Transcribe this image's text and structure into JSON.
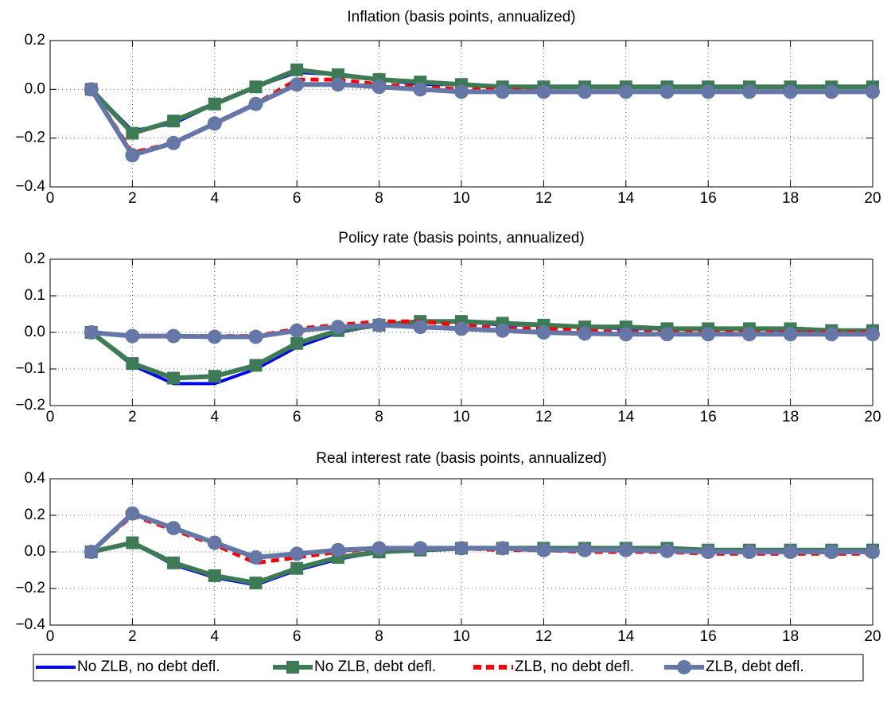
{
  "chart_data": [
    {
      "type": "line",
      "title": "Inflation (basis points, annualized)",
      "grid": true,
      "legend": "bottom",
      "x": [
        1,
        2,
        3,
        4,
        5,
        6,
        7,
        8,
        9,
        10,
        11,
        12,
        13,
        14,
        15,
        16,
        17,
        18,
        19,
        20
      ],
      "xlim": [
        0,
        20
      ],
      "xticks": [
        0,
        2,
        4,
        6,
        8,
        10,
        12,
        14,
        16,
        18,
        20
      ],
      "ylim": [
        -0.4,
        0.2
      ],
      "yticks": [
        {
          "value": -0.4,
          "label": "−0.4"
        },
        {
          "value": -0.2,
          "label": "−0.2"
        },
        {
          "value": 0,
          "label": "0.0"
        },
        0.2
      ],
      "series": [
        {
          "name": "No ZLB, no debt defl.",
          "color": "#0000ff",
          "marker": "none",
          "dashed": false,
          "values": [
            0,
            -0.17,
            -0.14,
            -0.06,
            0.01,
            0.07,
            0.06,
            0.04,
            0.02,
            0.02,
            0.01,
            0.01,
            0.01,
            0.01,
            0.01,
            0.01,
            0.01,
            0.01,
            0.01,
            0.01
          ]
        },
        {
          "name": "No ZLB, debt defl.",
          "color": "#3d7a56",
          "marker": "square",
          "dashed": false,
          "values": [
            0,
            -0.18,
            -0.13,
            -0.06,
            0.01,
            0.08,
            0.06,
            0.04,
            0.03,
            0.02,
            0.01,
            0.01,
            0.01,
            0.01,
            0.01,
            0.01,
            0.01,
            0.01,
            0.01,
            0.01
          ]
        },
        {
          "name": "ZLB, no debt defl.",
          "color": "#ff0000",
          "marker": "none",
          "dashed": true,
          "values": [
            0,
            -0.26,
            -0.22,
            -0.14,
            -0.06,
            0.04,
            0.04,
            0.02,
            0.01,
            0,
            0,
            -0.01,
            -0.01,
            -0.01,
            -0.01,
            -0.01,
            -0.01,
            -0.01,
            -0.01,
            -0.01
          ]
        },
        {
          "name": "ZLB, debt defl.",
          "color": "#6577a6",
          "marker": "circle",
          "dashed": false,
          "values": [
            0,
            -0.27,
            -0.22,
            -0.14,
            -0.06,
            0.02,
            0.02,
            0.01,
            0,
            -0.01,
            -0.01,
            -0.01,
            -0.01,
            -0.01,
            -0.01,
            -0.01,
            -0.01,
            -0.01,
            -0.01,
            -0.01
          ]
        }
      ]
    },
    {
      "type": "line",
      "title": "Policy rate (basis points, annualized)",
      "grid": true,
      "x": [
        1,
        2,
        3,
        4,
        5,
        6,
        7,
        8,
        9,
        10,
        11,
        12,
        13,
        14,
        15,
        16,
        17,
        18,
        19,
        20
      ],
      "xlim": [
        0,
        20
      ],
      "xticks": [
        0,
        2,
        4,
        6,
        8,
        10,
        12,
        14,
        16,
        18,
        20
      ],
      "ylim": [
        -0.2,
        0.2
      ],
      "yticks": [
        {
          "value": -0.2,
          "label": "−0.2"
        },
        {
          "value": -0.1,
          "label": "−0.1"
        },
        {
          "value": 0,
          "label": "0.0"
        },
        0.1,
        0.2
      ],
      "series": [
        {
          "color": "#0000ff",
          "marker": "none",
          "dashed": false,
          "values": [
            0,
            -0.09,
            -0.14,
            -0.14,
            -0.1,
            -0.04,
            0,
            0.02,
            0.03,
            0.03,
            0.02,
            0.02,
            0.015,
            0.01,
            0.01,
            0.01,
            0.01,
            0.005,
            0.005,
            0.005
          ]
        },
        {
          "color": "#3d7a56",
          "marker": "square",
          "dashed": false,
          "values": [
            0,
            -0.085,
            -0.125,
            -0.12,
            -0.09,
            -0.03,
            0.005,
            0.02,
            0.03,
            0.03,
            0.025,
            0.02,
            0.015,
            0.015,
            0.01,
            0.01,
            0.01,
            0.01,
            0.005,
            0.005
          ]
        },
        {
          "color": "#ff0000",
          "marker": "none",
          "dashed": true,
          "values": [
            0,
            -0.01,
            -0.01,
            -0.01,
            -0.01,
            0.01,
            0.02,
            0.03,
            0.03,
            0.02,
            0.01,
            0.01,
            0.005,
            0,
            0,
            0,
            0,
            0,
            0,
            0
          ]
        },
        {
          "color": "#6577a6",
          "marker": "circle",
          "dashed": false,
          "values": [
            0,
            -0.01,
            -0.01,
            -0.012,
            -0.012,
            0.005,
            0.015,
            0.02,
            0.015,
            0.01,
            0.005,
            0,
            -0.003,
            -0.005,
            -0.005,
            -0.005,
            -0.005,
            -0.005,
            -0.005,
            -0.005
          ]
        }
      ]
    },
    {
      "type": "line",
      "title": "Real interest rate (basis points, annualized)",
      "grid": true,
      "x": [
        1,
        2,
        3,
        4,
        5,
        6,
        7,
        8,
        9,
        10,
        11,
        12,
        13,
        14,
        15,
        16,
        17,
        18,
        19,
        20
      ],
      "xlim": [
        0,
        20
      ],
      "xticks": [
        0,
        2,
        4,
        6,
        8,
        10,
        12,
        14,
        16,
        18,
        20
      ],
      "ylim": [
        -0.4,
        0.4
      ],
      "yticks": [
        {
          "value": -0.4,
          "label": "−0.4"
        },
        {
          "value": -0.2,
          "label": "−0.2"
        },
        {
          "value": 0,
          "label": "0.0"
        },
        0.2,
        0.4
      ],
      "series": [
        {
          "color": "#0000ff",
          "marker": "none",
          "dashed": false,
          "values": [
            0,
            0.05,
            -0.07,
            -0.14,
            -0.18,
            -0.1,
            -0.04,
            0,
            0.01,
            0.02,
            0.02,
            0.02,
            0.02,
            0.02,
            0.02,
            0.01,
            0.01,
            0.01,
            0.01,
            0.01
          ]
        },
        {
          "color": "#3d7a56",
          "marker": "square",
          "dashed": false,
          "values": [
            0,
            0.05,
            -0.06,
            -0.13,
            -0.17,
            -0.09,
            -0.03,
            0,
            0.01,
            0.02,
            0.02,
            0.02,
            0.02,
            0.02,
            0.02,
            0.01,
            0.01,
            0.01,
            0.01,
            0.01
          ]
        },
        {
          "color": "#ff0000",
          "marker": "none",
          "dashed": true,
          "values": [
            0,
            0.2,
            0.12,
            0.04,
            -0.06,
            -0.03,
            0,
            0.02,
            0.02,
            0.02,
            0.01,
            0.01,
            0,
            0,
            0,
            -0.01,
            -0.01,
            -0.01,
            -0.01,
            -0.01
          ]
        },
        {
          "color": "#6577a6",
          "marker": "circle",
          "dashed": false,
          "values": [
            0,
            0.21,
            0.13,
            0.05,
            -0.03,
            -0.01,
            0.01,
            0.02,
            0.02,
            0.02,
            0.02,
            0.01,
            0.01,
            0.01,
            0.005,
            0,
            0,
            0,
            0,
            0
          ]
        }
      ]
    }
  ]
}
